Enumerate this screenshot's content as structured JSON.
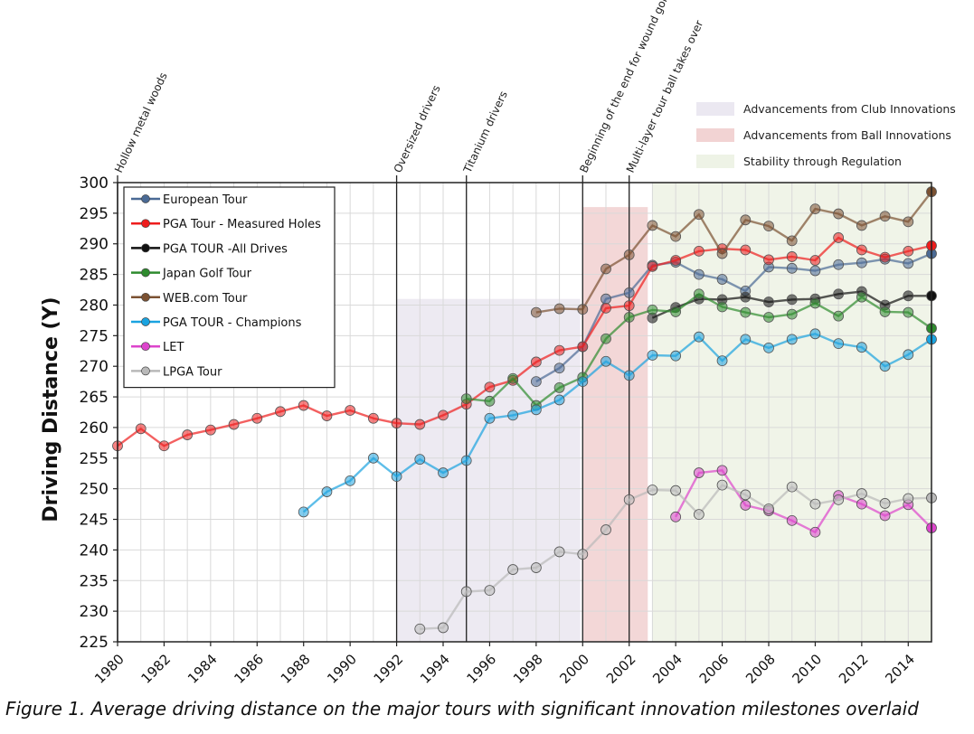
{
  "chart_data": {
    "type": "line",
    "title": "",
    "ylabel": "Driving Distance (Y)",
    "xlabel": "",
    "xlim": [
      1980,
      2015
    ],
    "ylim": [
      225,
      300
    ],
    "x_ticks": [
      "1980",
      "1982",
      "1984",
      "1986",
      "1988",
      "1990",
      "1992",
      "1994",
      "1996",
      "1998",
      "2000",
      "2002",
      "2004",
      "2006",
      "2008",
      "2010",
      "2012",
      "2014"
    ],
    "y_ticks": [
      "225",
      "230",
      "235",
      "240",
      "245",
      "250",
      "255",
      "260",
      "265",
      "270",
      "275",
      "280",
      "285",
      "290",
      "295",
      "300"
    ],
    "shaded_regions": [
      {
        "label": "Advancements from Club Innovations",
        "x_start": 1992,
        "x_end": 1999.9,
        "y_top": 281,
        "color": "#ebe8f1"
      },
      {
        "label": "Advancements from Ball Innovations",
        "x_start": 2000,
        "x_end": 2002.8,
        "y_top": 296,
        "color": "#f2d3d3"
      },
      {
        "label": "Stability through Regulation",
        "x_start": 2003,
        "x_end": 2015,
        "y_top": 300,
        "color": "#eef3e6"
      }
    ],
    "milestones": [
      {
        "x": 1980,
        "label": "Hollow metal woods"
      },
      {
        "x": 1992,
        "label": "Oversized drivers"
      },
      {
        "x": 1995,
        "label": "Titanium drivers"
      },
      {
        "x": 2000,
        "label": "Beginning of the end for wound golf balls"
      },
      {
        "x": 2002,
        "label": "Multi-layer tour ball takes over"
      }
    ],
    "series": [
      {
        "name": "European Tour",
        "color": "#4a6a95",
        "points": [
          [
            1998,
            267.5
          ],
          [
            1999,
            269.7
          ],
          [
            2000,
            273.2
          ],
          [
            2001,
            281
          ],
          [
            2002,
            282
          ],
          [
            2003,
            286.5
          ],
          [
            2004,
            287
          ],
          [
            2005,
            285
          ],
          [
            2006,
            284.2
          ],
          [
            2007,
            282.3
          ],
          [
            2008,
            286.2
          ],
          [
            2009,
            286
          ],
          [
            2010,
            285.6
          ],
          [
            2011,
            286.6
          ],
          [
            2012,
            286.9
          ],
          [
            2013,
            287.5
          ],
          [
            2014,
            286.8
          ],
          [
            2015,
            288.4
          ]
        ]
      },
      {
        "name": "PGA Tour - Measured Holes",
        "color": "#ee1c1c",
        "points": [
          [
            1980,
            257
          ],
          [
            1981,
            259.8
          ],
          [
            1982,
            257
          ],
          [
            1983,
            258.8
          ],
          [
            1984,
            259.6
          ],
          [
            1985,
            260.5
          ],
          [
            1986,
            261.5
          ],
          [
            1987,
            262.6
          ],
          [
            1988,
            263.6
          ],
          [
            1989,
            261.9
          ],
          [
            1990,
            262.8
          ],
          [
            1991,
            261.5
          ],
          [
            1992,
            260.7
          ],
          [
            1993,
            260.5
          ],
          [
            1994,
            262
          ],
          [
            1995,
            263.8
          ],
          [
            1996,
            266.6
          ],
          [
            1997,
            267.7
          ],
          [
            1998,
            270.7
          ],
          [
            1999,
            272.6
          ],
          [
            2000,
            273.2
          ],
          [
            2001,
            279.5
          ],
          [
            2002,
            279.9
          ],
          [
            2003,
            286.3
          ],
          [
            2004,
            287.3
          ],
          [
            2005,
            288.8
          ],
          [
            2006,
            289.2
          ],
          [
            2007,
            289
          ],
          [
            2008,
            287.4
          ],
          [
            2009,
            287.9
          ],
          [
            2010,
            287.3
          ],
          [
            2011,
            291
          ],
          [
            2012,
            289
          ],
          [
            2013,
            287.8
          ],
          [
            2014,
            288.8
          ],
          [
            2015,
            289.7
          ]
        ]
      },
      {
        "name": "PGA TOUR -All Drives",
        "color": "#111111",
        "points": [
          [
            2003,
            277.9
          ],
          [
            2004,
            279.6
          ],
          [
            2005,
            281
          ],
          [
            2006,
            280.9
          ],
          [
            2007,
            281.3
          ],
          [
            2008,
            280.5
          ],
          [
            2009,
            280.9
          ],
          [
            2010,
            281
          ],
          [
            2011,
            281.8
          ],
          [
            2012,
            282.2
          ],
          [
            2013,
            280
          ],
          [
            2014,
            281.5
          ],
          [
            2015,
            281.5
          ]
        ]
      },
      {
        "name": "Japan Golf Tour",
        "color": "#2e8b2e",
        "points": [
          [
            1995,
            264.7
          ],
          [
            1996,
            264.3
          ],
          [
            1997,
            268
          ],
          [
            1998,
            263.6
          ],
          [
            1999,
            266.5
          ],
          [
            2000,
            268.2
          ],
          [
            2001,
            274.5
          ],
          [
            2002,
            278
          ],
          [
            2003,
            279.2
          ],
          [
            2004,
            278.9
          ],
          [
            2005,
            281.8
          ],
          [
            2006,
            279.7
          ],
          [
            2007,
            278.8
          ],
          [
            2008,
            278
          ],
          [
            2009,
            278.5
          ],
          [
            2010,
            280.3
          ],
          [
            2011,
            278.2
          ],
          [
            2012,
            281.3
          ],
          [
            2013,
            278.9
          ],
          [
            2014,
            278.8
          ],
          [
            2015,
            276.2
          ]
        ]
      },
      {
        "name": "WEB.com Tour",
        "color": "#7b5132",
        "points": [
          [
            1998,
            278.8
          ],
          [
            1999,
            279.4
          ],
          [
            2000,
            279.3
          ],
          [
            2001,
            285.9
          ],
          [
            2002,
            288.2
          ],
          [
            2003,
            293
          ],
          [
            2004,
            291.2
          ],
          [
            2005,
            294.8
          ],
          [
            2006,
            288.4
          ],
          [
            2007,
            293.9
          ],
          [
            2008,
            292.9
          ],
          [
            2009,
            290.5
          ],
          [
            2010,
            295.7
          ],
          [
            2011,
            294.9
          ],
          [
            2012,
            293
          ],
          [
            2013,
            294.5
          ],
          [
            2014,
            293.6
          ],
          [
            2015,
            298.5
          ]
        ]
      },
      {
        "name": "PGA TOUR - Champions",
        "color": "#1aa3e0",
        "points": [
          [
            1988,
            246.2
          ],
          [
            1989,
            249.5
          ],
          [
            1990,
            251.3
          ],
          [
            1991,
            255
          ],
          [
            1992,
            252
          ],
          [
            1993,
            254.8
          ],
          [
            1994,
            252.6
          ],
          [
            1995,
            254.6
          ],
          [
            1996,
            261.5
          ],
          [
            1997,
            262
          ],
          [
            1998,
            262.9
          ],
          [
            1999,
            264.5
          ],
          [
            2000,
            267.5
          ],
          [
            2001,
            270.8
          ],
          [
            2002,
            268.5
          ],
          [
            2003,
            271.8
          ],
          [
            2004,
            271.7
          ],
          [
            2005,
            274.8
          ],
          [
            2006,
            270.9
          ],
          [
            2007,
            274.4
          ],
          [
            2008,
            273
          ],
          [
            2009,
            274.4
          ],
          [
            2010,
            275.3
          ],
          [
            2011,
            273.7
          ],
          [
            2012,
            273.1
          ],
          [
            2013,
            270
          ],
          [
            2014,
            271.9
          ],
          [
            2015,
            274.4
          ]
        ]
      },
      {
        "name": "LET",
        "color": "#dd44cc",
        "points": [
          [
            2004,
            245.4
          ],
          [
            2005,
            252.6
          ],
          [
            2006,
            253
          ],
          [
            2007,
            247.3
          ],
          [
            2008,
            246.4
          ],
          [
            2009,
            244.8
          ],
          [
            2010,
            242.9
          ],
          [
            2011,
            248.9
          ],
          [
            2012,
            247.5
          ],
          [
            2013,
            245.6
          ],
          [
            2014,
            247.4
          ],
          [
            2015,
            243.6
          ]
        ]
      },
      {
        "name": "LPGA Tour",
        "color": "#b9b9b9",
        "points": [
          [
            1993,
            227.1
          ],
          [
            1994,
            227.3
          ],
          [
            1995,
            233.2
          ],
          [
            1996,
            233.4
          ],
          [
            1997,
            236.8
          ],
          [
            1998,
            237.1
          ],
          [
            1999,
            239.7
          ],
          [
            2000,
            239.3
          ],
          [
            2001,
            243.3
          ],
          [
            2002,
            248.2
          ],
          [
            2003,
            249.8
          ],
          [
            2004,
            249.7
          ],
          [
            2005,
            245.8
          ],
          [
            2006,
            250.6
          ],
          [
            2007,
            249
          ],
          [
            2008,
            246.7
          ],
          [
            2009,
            250.3
          ],
          [
            2010,
            247.5
          ],
          [
            2011,
            248.2
          ],
          [
            2012,
            249.2
          ],
          [
            2013,
            247.6
          ],
          [
            2014,
            248.4
          ],
          [
            2015,
            248.5
          ]
        ]
      }
    ]
  },
  "caption": "Figure 1. Average driving distance on the major tours with significant innovation milestones overlaid"
}
